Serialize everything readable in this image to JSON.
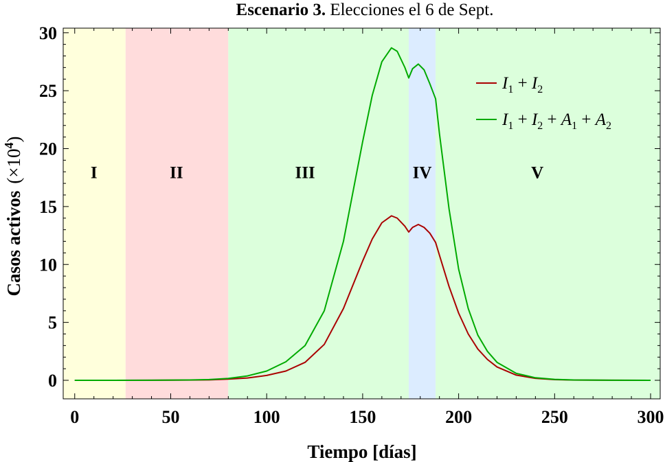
{
  "chart_data": {
    "type": "line",
    "title_bold": "Escenario 3.",
    "title_rest": " Elecciones el 6 de Sept.",
    "xlabel": "Tiempo [días]",
    "ylabel": "Casos activos",
    "ylabel_unit_prefix": "(×10",
    "ylabel_unit_exp": "4",
    "ylabel_unit_suffix": ")",
    "xlim": [
      -6,
      305
    ],
    "ylim": [
      -1.6,
      30.4
    ],
    "xticks": [
      0,
      50,
      100,
      150,
      200,
      250,
      300
    ],
    "yticks": [
      0,
      5,
      10,
      15,
      20,
      25,
      30
    ],
    "regions": [
      {
        "label": "I",
        "start": -6,
        "end": 26.5,
        "color": "#ffffdc"
      },
      {
        "label": "II",
        "start": 26.5,
        "end": 80,
        "color": "#ffdcdc"
      },
      {
        "label": "III",
        "start": 80,
        "end": 174,
        "color": "#dcffdc"
      },
      {
        "label": "IV",
        "start": 174,
        "end": 188,
        "color": "#dcecff"
      },
      {
        "label": "V",
        "start": 188,
        "end": 305,
        "color": "#dcffdc"
      }
    ],
    "region_label_positions_x": [
      10,
      53,
      120,
      181,
      241
    ],
    "region_label_y": 18,
    "series": [
      {
        "name": "I1 + I2",
        "color": "#aa0000",
        "x": [
          0,
          20,
          40,
          60,
          70,
          80,
          90,
          100,
          110,
          120,
          130,
          140,
          150,
          155,
          160,
          165,
          168,
          172,
          174,
          176,
          179,
          182,
          185,
          188,
          190,
          195,
          200,
          205,
          210,
          215,
          220,
          230,
          240,
          250,
          260,
          280,
          300
        ],
        "values": [
          0,
          0,
          0.01,
          0.02,
          0.04,
          0.1,
          0.2,
          0.42,
          0.8,
          1.55,
          3.1,
          6.2,
          10.3,
          12.2,
          13.6,
          14.2,
          14.0,
          13.3,
          12.8,
          13.2,
          13.45,
          13.2,
          12.7,
          11.9,
          10.8,
          8.1,
          5.8,
          4.0,
          2.7,
          1.8,
          1.15,
          0.45,
          0.17,
          0.06,
          0.02,
          0.005,
          0
        ]
      },
      {
        "name": "I1 + I2 + A1 + A2",
        "color": "#00aa00",
        "x": [
          0,
          20,
          40,
          60,
          70,
          80,
          90,
          100,
          110,
          120,
          130,
          140,
          150,
          155,
          160,
          165,
          168,
          172,
          174,
          176,
          179,
          182,
          185,
          188,
          190,
          195,
          200,
          205,
          210,
          215,
          220,
          230,
          240,
          250,
          260,
          280,
          300
        ],
        "values": [
          0,
          0,
          0.01,
          0.03,
          0.07,
          0.16,
          0.38,
          0.8,
          1.6,
          3.0,
          6.0,
          12.0,
          20.6,
          24.6,
          27.5,
          28.7,
          28.4,
          27.0,
          26.1,
          26.9,
          27.3,
          26.8,
          25.6,
          24.3,
          21.3,
          14.8,
          9.6,
          6.2,
          3.9,
          2.5,
          1.55,
          0.6,
          0.22,
          0.08,
          0.03,
          0.005,
          0
        ]
      }
    ],
    "legend": {
      "position": "top-right",
      "entries": [
        {
          "base1": "I",
          "sub1": "1",
          "op1": " + ",
          "base2": "I",
          "sub2": "2"
        },
        {
          "base1": "I",
          "sub1": "1",
          "op1": " + ",
          "base2": "I",
          "sub2": "2",
          "op2": " + ",
          "base3": "A",
          "sub3": "1",
          "op3": " + ",
          "base4": "A",
          "sub4": "2"
        }
      ]
    }
  }
}
